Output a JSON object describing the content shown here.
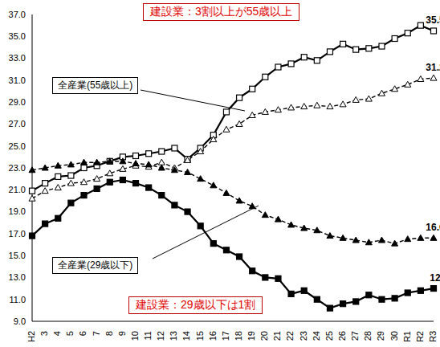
{
  "chart_data": {
    "type": "line",
    "title": "建設業：3割以上が55歳以上",
    "annotations": [
      "建設業：29歳以下は1割"
    ],
    "categories": [
      "H2",
      "3",
      "4",
      "5",
      "6",
      "7",
      "8",
      "9",
      "10",
      "11",
      "12",
      "13",
      "14",
      "15",
      "16",
      "17",
      "18",
      "19",
      "20",
      "21",
      "22",
      "23",
      "24",
      "25",
      "26",
      "27",
      "28",
      "29",
      "30",
      "R1",
      "R2",
      "R3"
    ],
    "series": [
      {
        "color": "#000000",
        "marker": "square_open",
        "line_style": "solid",
        "values": [
          20.9,
          21.6,
          22.2,
          22.3,
          23.0,
          23.2,
          23.6,
          24.0,
          24.1,
          24.3,
          24.5,
          24.8,
          23.8,
          24.8,
          26.0,
          28.1,
          29.4,
          30.2,
          31.3,
          32.2,
          32.5,
          33.1,
          32.8,
          33.6,
          34.3,
          33.8,
          33.9,
          34.1,
          34.8,
          35.3,
          36.0,
          35.5
        ]
      },
      {
        "name": "全産業(55歳以上)",
        "color": "#000000",
        "marker": "triangle_open",
        "line_style": "dashed",
        "values": [
          20.2,
          20.9,
          21.2,
          21.6,
          21.7,
          22.0,
          22.5,
          22.9,
          23.2,
          23.1,
          23.5,
          23.0,
          23.7,
          24.5,
          25.6,
          26.5,
          27.0,
          27.8,
          28.1,
          28.3,
          28.5,
          28.6,
          28.7,
          28.6,
          28.8,
          29.2,
          29.3,
          29.8,
          30.2,
          30.6,
          31.1,
          31.2
        ]
      },
      {
        "name": "全産業(29歳以下)",
        "color": "#000000",
        "marker": "triangle",
        "line_style": "dashed",
        "values": [
          22.8,
          23.0,
          23.2,
          23.3,
          23.5,
          23.5,
          23.6,
          23.6,
          23.4,
          23.3,
          23.0,
          22.8,
          22.6,
          22.0,
          21.4,
          20.7,
          20.0,
          19.5,
          18.7,
          18.3,
          17.8,
          17.5,
          17.3,
          16.8,
          16.6,
          16.4,
          16.2,
          16.4,
          16.1,
          16.5,
          16.6,
          16.6
        ]
      },
      {
        "color": "#000000",
        "marker": "square",
        "line_style": "solid",
        "values": [
          16.8,
          17.9,
          18.4,
          19.8,
          20.5,
          21.1,
          21.7,
          21.9,
          21.6,
          21.2,
          20.5,
          19.6,
          19.0,
          17.7,
          16.1,
          15.5,
          14.9,
          13.6,
          13.0,
          12.9,
          11.5,
          11.8,
          11.0,
          10.2,
          10.6,
          10.8,
          11.4,
          11.0,
          11.1,
          11.6,
          11.8,
          12.0
        ]
      }
    ],
    "ylim": [
      9,
      37
    ],
    "yticks": [
      {
        "value": 9,
        "label": "9.0"
      },
      {
        "value": 11,
        "label": "11.0"
      },
      {
        "value": 13,
        "label": "13.0"
      },
      {
        "value": 15,
        "label": "15.0"
      },
      {
        "value": 17,
        "label": "17.0"
      },
      {
        "value": 19,
        "label": "19.0"
      },
      {
        "value": 21,
        "label": "21.0"
      },
      {
        "value": 23,
        "label": "23.0"
      },
      {
        "value": 25,
        "label": "25.0"
      },
      {
        "value": 27,
        "label": "27.0"
      },
      {
        "value": 29,
        "label": "29.0"
      },
      {
        "value": 31,
        "label": "31.0"
      },
      {
        "value": 33,
        "label": "33.0"
      },
      {
        "value": 35,
        "label": "35.0"
      },
      {
        "value": 37,
        "label": "37.0"
      }
    ],
    "grid": false
  }
}
